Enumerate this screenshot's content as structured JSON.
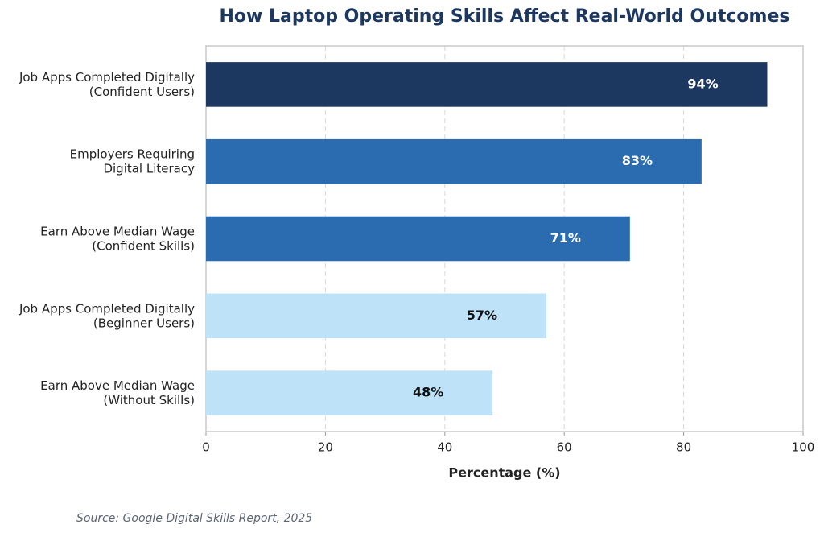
{
  "chart_data": {
    "type": "barh",
    "title": "How Laptop Operating Skills Affect Real-World Outcomes",
    "categories": [
      "Job Apps Completed Digitally\n(Confident Users)",
      "Employers Requiring\nDigital Literacy",
      "Earn Above Median Wage\n(Confident Skills)",
      "Job Apps Completed Digitally\n(Beginner Users)",
      "Earn Above Median Wage\n(Without Skills)"
    ],
    "values": [
      94,
      83,
      71,
      57,
      48
    ],
    "value_labels": [
      "94%",
      "83%",
      "71%",
      "57%",
      "48%"
    ],
    "colors": [
      "#1c3760",
      "#2b6cb0",
      "#2b6cb0",
      "#bee3f8",
      "#bee3f8"
    ],
    "xlim": [
      0,
      100
    ],
    "xticks": [
      0,
      20,
      40,
      60,
      80,
      100
    ],
    "grid": true,
    "xlabel": "Percentage (%)",
    "source": "Source: Google Digital Skills Report, 2025"
  }
}
